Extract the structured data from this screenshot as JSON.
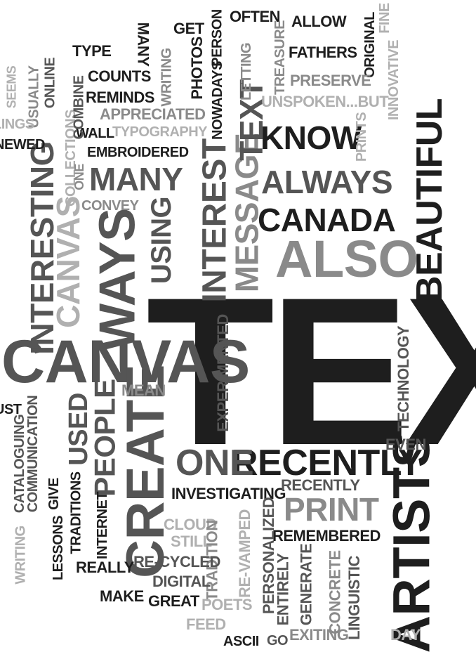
{
  "words": [
    "TEXT",
    "CANVAS",
    "CREATE",
    "ARTISTS",
    "ALSO",
    "WAYS",
    "INTERESTING",
    "CANVAS",
    "PEOPLE",
    "USED",
    "RECENTLY",
    "ONE",
    "PRINT",
    "BEAUTIFUL",
    "CANADA",
    "ALWAYS",
    "MANY",
    "INTEREST",
    "MESSAGE",
    "USING",
    "KNOW",
    "TEXT",
    "MEAN",
    "EXPERIMENTED",
    "TECHNOLOGY",
    "EVEN",
    "INVESTIGATING",
    "RECENTLY",
    "REMEMBERED",
    "PERSONALIZED",
    "CLOUD",
    "STILL",
    "RE-VAMPED",
    "TRADITION",
    "DIGITAL",
    "RE-CYCLED",
    "REALLY",
    "MAKE",
    "GREAT",
    "POETS",
    "FEED",
    "ASCII",
    "GO",
    "EXITING",
    "DAY",
    "CONCRETE",
    "LINGUISTIC",
    "ENTIRELY",
    "GENERATE",
    "INTERNET",
    "TRADITIONS",
    "LESSONS",
    "GIVE",
    "CATALOGUING",
    "WRITING",
    "COMMUNICATION",
    "CONVEY",
    "EMBROIDERED",
    "COLLECTIONS",
    "ONE",
    "WALL",
    "TYPOGRAPHY",
    "APPRECIATED",
    "REMINDS",
    "COUNTS",
    "TYPE",
    "COMBINE",
    "ONLINE",
    "USUALLY",
    "SEEMS",
    "LINGS",
    "NEWED",
    "MANY",
    "GET",
    "PHOTOS",
    "WRITING",
    "NOWADAYS",
    "PERSON",
    "OFTEN",
    "ALLOW",
    "LETTING",
    "TREASURE",
    "FATHERS",
    "ORIGINAL",
    "FINE",
    "INNOVATIVE",
    "PRESERVE",
    "UNSPOKEN...BUT",
    "PRINTS",
    "UST"
  ]
}
